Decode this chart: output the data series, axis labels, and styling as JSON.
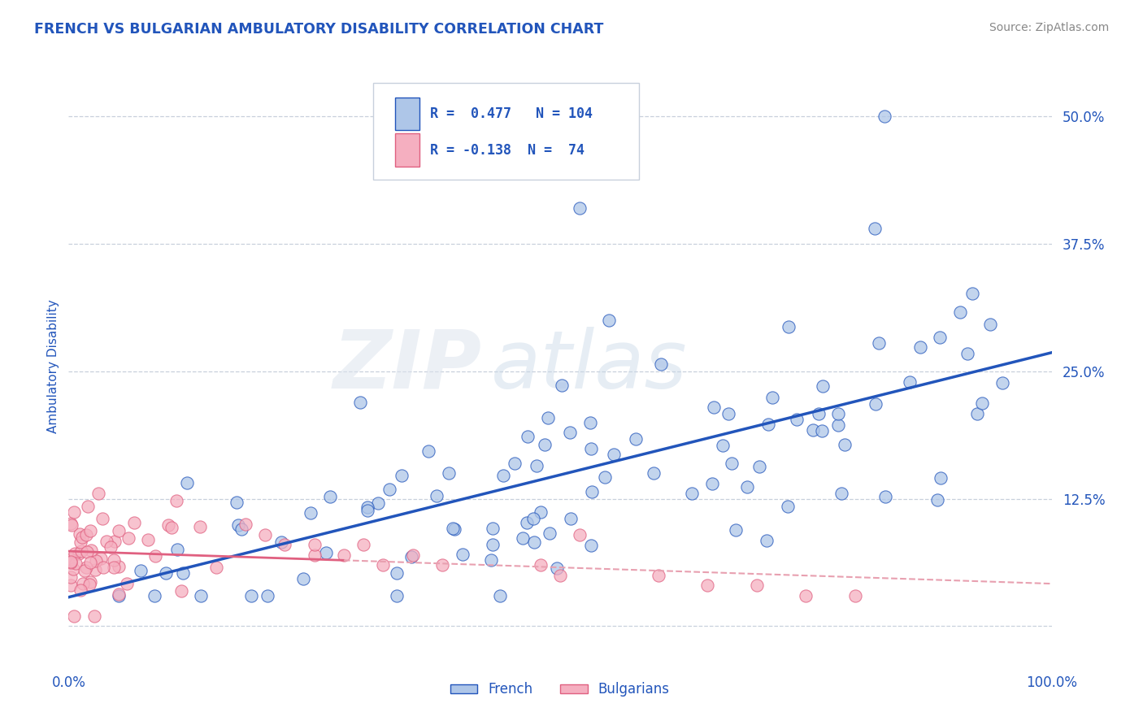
{
  "title": "FRENCH VS BULGARIAN AMBULATORY DISABILITY CORRELATION CHART",
  "source": "Source: ZipAtlas.com",
  "ylabel": "Ambulatory Disability",
  "xlim": [
    0.0,
    1.0
  ],
  "ylim": [
    -0.04,
    0.55
  ],
  "xticks": [
    0.0,
    0.25,
    0.5,
    0.75,
    1.0
  ],
  "xticklabels": [
    "0.0%",
    "",
    "",
    "",
    "100.0%"
  ],
  "yticks": [
    0.0,
    0.125,
    0.25,
    0.375,
    0.5
  ],
  "yticklabels": [
    "",
    "12.5%",
    "25.0%",
    "37.5%",
    "50.0%"
  ],
  "french_R": 0.477,
  "french_N": 104,
  "bulgarian_R": -0.138,
  "bulgarian_N": 74,
  "french_color": "#aec6e8",
  "bulgarian_color": "#f5afc0",
  "trend_french_color": "#2255bb",
  "trend_bulgarian_solid_color": "#e06080",
  "trend_bulgarian_dash_color": "#e8a0b0",
  "background_color": "#ffffff",
  "grid_color": "#c8d0dc",
  "watermark_zip": "ZIP",
  "watermark_atlas": "atlas",
  "title_color": "#2255bb",
  "axis_color": "#2255bb",
  "legend_border_color": "#c8d0dc",
  "source_color": "#888888"
}
